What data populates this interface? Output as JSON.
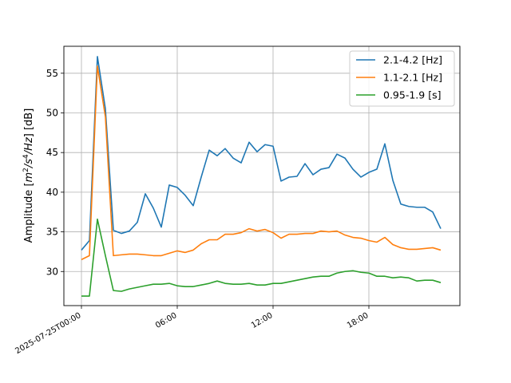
{
  "chart_data": {
    "type": "line",
    "title": "",
    "xlabel": "",
    "ylabel_parts": {
      "prefix": "Amplitude [",
      "m": "m",
      "two": "2",
      "slash_s": "/s",
      "four": "4",
      "slash_hz": "/Hz",
      "suffix": "] [dB]"
    },
    "x_hours": [
      0,
      0.5,
      1,
      1.5,
      2,
      2.5,
      3,
      3.5,
      4,
      4.5,
      5,
      5.5,
      6,
      6.5,
      7,
      7.5,
      8,
      8.5,
      9,
      9.5,
      10,
      10.5,
      11,
      11.5,
      12,
      12.5,
      13,
      13.5,
      14,
      14.5,
      15,
      15.5,
      16,
      16.5,
      17,
      17.5,
      18,
      18.5,
      19,
      19.5,
      20,
      20.5,
      21,
      21.5,
      22,
      22.5
    ],
    "xlim": [
      -1.1,
      23.7
    ],
    "ylim": [
      25.7,
      58.4
    ],
    "xticks": [
      {
        "value": 0,
        "label": "2025-07-25T00:00"
      },
      {
        "value": 6,
        "label": "06:00"
      },
      {
        "value": 12,
        "label": "12:00"
      },
      {
        "value": 18,
        "label": "18:00"
      }
    ],
    "yticks": [
      {
        "value": 30,
        "label": "30"
      },
      {
        "value": 35,
        "label": "35"
      },
      {
        "value": 40,
        "label": "40"
      },
      {
        "value": 45,
        "label": "45"
      },
      {
        "value": 50,
        "label": "50"
      },
      {
        "value": 55,
        "label": "55"
      }
    ],
    "grid": true,
    "legend_position": "top-right",
    "series": [
      {
        "name": "2.1-4.2 [Hz]",
        "color": "#1f77b4",
        "values": [
          32.7,
          33.9,
          57.1,
          50.5,
          35.2,
          34.8,
          35.1,
          36.2,
          39.8,
          38.0,
          35.6,
          40.9,
          40.6,
          39.6,
          38.3,
          41.9,
          45.3,
          44.6,
          45.5,
          44.3,
          43.7,
          46.3,
          45.1,
          46.0,
          45.8,
          41.4,
          41.9,
          42.0,
          43.6,
          42.2,
          42.9,
          43.1,
          44.8,
          44.3,
          42.9,
          41.9,
          42.5,
          42.9,
          46.1,
          41.5,
          38.5,
          38.2,
          38.1,
          38.1,
          37.5,
          35.4
        ]
      },
      {
        "name": "1.1-2.1 [Hz]",
        "color": "#ff7f0e",
        "values": [
          31.5,
          32.0,
          55.9,
          49.5,
          32.0,
          32.1,
          32.2,
          32.2,
          32.1,
          32.0,
          32.0,
          32.3,
          32.6,
          32.4,
          32.7,
          33.5,
          34.0,
          34.0,
          34.7,
          34.7,
          34.9,
          35.4,
          35.1,
          35.3,
          34.9,
          34.2,
          34.7,
          34.7,
          34.8,
          34.8,
          35.1,
          35.0,
          35.1,
          34.6,
          34.3,
          34.2,
          33.9,
          33.7,
          34.3,
          33.4,
          33.0,
          32.8,
          32.8,
          32.9,
          33.0,
          32.7
        ]
      },
      {
        "name": "0.95-1.9 [s]",
        "color": "#2ca02c",
        "values": [
          26.9,
          26.9,
          36.6,
          32.0,
          27.6,
          27.5,
          27.8,
          28.0,
          28.2,
          28.4,
          28.4,
          28.5,
          28.2,
          28.1,
          28.1,
          28.3,
          28.5,
          28.8,
          28.5,
          28.4,
          28.4,
          28.5,
          28.3,
          28.3,
          28.5,
          28.5,
          28.7,
          28.9,
          29.1,
          29.3,
          29.4,
          29.4,
          29.8,
          30.0,
          30.1,
          29.9,
          29.8,
          29.4,
          29.4,
          29.2,
          29.3,
          29.2,
          28.8,
          28.9,
          28.9,
          28.6
        ]
      }
    ]
  }
}
